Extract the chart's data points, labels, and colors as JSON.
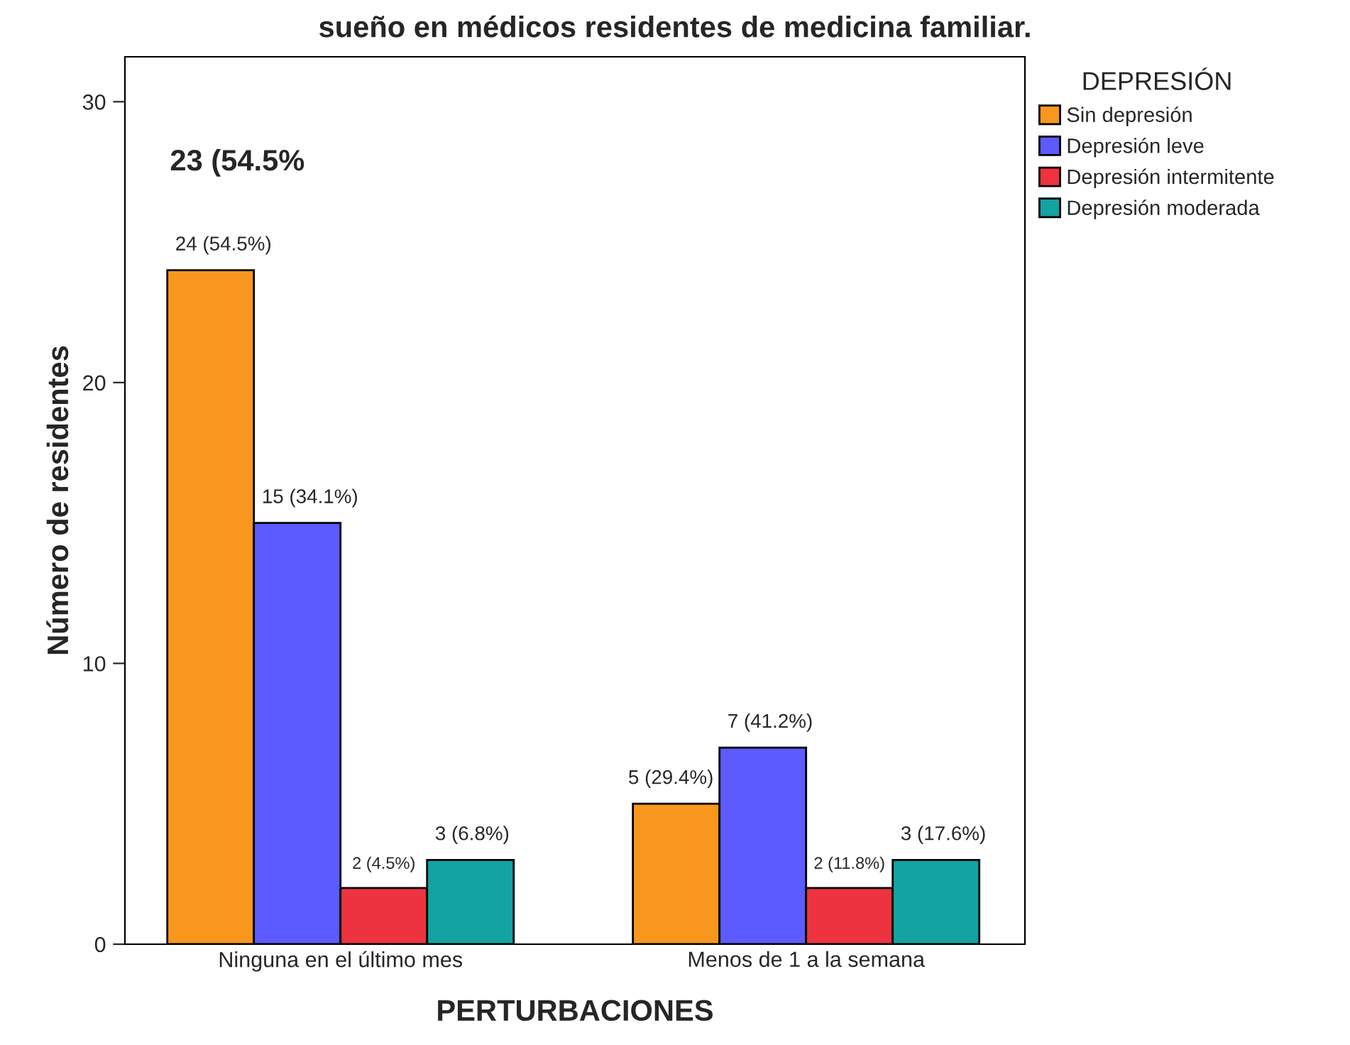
{
  "chart_data": {
    "type": "bar",
    "title": "sueño en médicos residentes de medicina familiar.",
    "xlabel": "PERTURBACIONES",
    "ylabel": "Número de residentes",
    "legend_title": "DEPRESIÓN",
    "categories": [
      "Ninguna en el último mes",
      "Menos de 1 a la semana"
    ],
    "series": [
      {
        "name": "Sin depresión",
        "color": "#f7971e",
        "values": [
          24,
          5
        ],
        "value_labels": [
          "24 (54.5%)",
          "5 (29.4%)"
        ]
      },
      {
        "name": "Depresión leve",
        "color": "#5b5bff",
        "values": [
          15,
          7
        ],
        "value_labels": [
          "15 (34.1%)",
          "7 (41.2%)"
        ]
      },
      {
        "name": "Depresión intermitente",
        "color": "#ee3340",
        "values": [
          2,
          2
        ],
        "value_labels": [
          "2 (4.5%)",
          "2 (11.8%)"
        ]
      },
      {
        "name": "Depresión moderada",
        "color": "#13a3a3",
        "values": [
          3,
          3
        ],
        "value_labels": [
          "3 (6.8%)",
          "3 (17.6%)"
        ]
      }
    ],
    "annotations": [
      "23 (54.5%"
    ],
    "ylim": [
      0,
      31.6
    ],
    "yticks": [
      0,
      10,
      20,
      30
    ],
    "grid": false,
    "legend": "top right"
  }
}
